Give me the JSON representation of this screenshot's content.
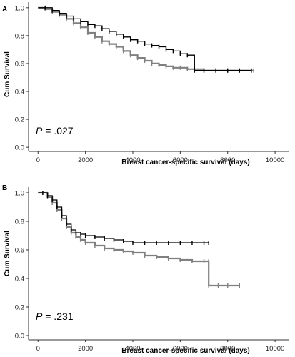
{
  "chart_data": [
    {
      "type": "line",
      "panel": "A",
      "ylabel": "Cum Survival",
      "xlabel": "Breast cancer-specific survival (days)",
      "annotation_p": "P",
      "annotation_value": " = .027",
      "xlim": [
        -400,
        10600
      ],
      "ylim": [
        -0.03,
        1.04
      ],
      "xticks": [
        "0",
        "2000",
        "4000",
        "6000",
        "8000",
        "10000"
      ],
      "yticks": [
        "0.0",
        "0.2",
        "0.4",
        "0.6",
        "0.8",
        "1.0"
      ],
      "grid": false,
      "series": [
        {
          "color": "#808080",
          "x": [
            0,
            300,
            600,
            900,
            1200,
            1500,
            1800,
            2100,
            2400,
            2700,
            3000,
            3300,
            3600,
            3900,
            4200,
            4500,
            4800,
            5100,
            5400,
            5700,
            6000,
            6300,
            6600,
            7000,
            7500,
            8000,
            8500,
            9100
          ],
          "y": [
            1.0,
            0.99,
            0.97,
            0.95,
            0.92,
            0.89,
            0.86,
            0.82,
            0.79,
            0.76,
            0.74,
            0.72,
            0.69,
            0.66,
            0.64,
            0.62,
            0.6,
            0.59,
            0.58,
            0.57,
            0.57,
            0.56,
            0.56,
            0.55,
            0.55,
            0.55,
            0.55,
            0.55
          ]
        },
        {
          "color": "#000000",
          "x": [
            0,
            300,
            600,
            900,
            1200,
            1500,
            1800,
            2100,
            2400,
            2700,
            3000,
            3300,
            3600,
            3900,
            4200,
            4500,
            4800,
            5100,
            5400,
            5700,
            6000,
            6300,
            6600,
            7000,
            7500,
            8000,
            8500,
            9000
          ],
          "y": [
            1.0,
            1.0,
            0.98,
            0.96,
            0.94,
            0.92,
            0.9,
            0.88,
            0.87,
            0.85,
            0.83,
            0.81,
            0.79,
            0.77,
            0.76,
            0.74,
            0.73,
            0.72,
            0.7,
            0.69,
            0.67,
            0.66,
            0.55,
            0.55,
            0.55,
            0.55,
            0.55,
            0.55
          ]
        }
      ]
    },
    {
      "type": "line",
      "panel": "B",
      "ylabel": "Cum Survival",
      "xlabel": "Breast cancer-specific survival (days)",
      "annotation_p": "P",
      "annotation_value": " = .231",
      "xlim": [
        -400,
        10600
      ],
      "ylim": [
        -0.03,
        1.04
      ],
      "xticks": [
        "0",
        "2000",
        "4000",
        "6000",
        "8000",
        "10000"
      ],
      "yticks": [
        "0.0",
        "0.2",
        "0.4",
        "0.6",
        "0.8",
        "1.0"
      ],
      "grid": false,
      "series": [
        {
          "color": "#808080",
          "x": [
            0,
            200,
            400,
            600,
            800,
            1000,
            1200,
            1400,
            1600,
            1800,
            2000,
            2400,
            2800,
            3200,
            3600,
            4000,
            4500,
            5000,
            5500,
            6000,
            6500,
            7000,
            7200,
            7200,
            7600,
            8000,
            8500
          ],
          "y": [
            1.0,
            1.0,
            0.97,
            0.93,
            0.88,
            0.82,
            0.76,
            0.72,
            0.69,
            0.67,
            0.65,
            0.63,
            0.61,
            0.6,
            0.59,
            0.58,
            0.56,
            0.55,
            0.54,
            0.53,
            0.52,
            0.52,
            0.52,
            0.35,
            0.35,
            0.35,
            0.35
          ]
        },
        {
          "color": "#000000",
          "x": [
            0,
            200,
            400,
            600,
            800,
            1000,
            1200,
            1400,
            1600,
            1800,
            2000,
            2400,
            2800,
            3200,
            3600,
            4000,
            4500,
            5000,
            5500,
            6000,
            6500,
            7000,
            7200
          ],
          "y": [
            1.0,
            1.0,
            0.98,
            0.95,
            0.9,
            0.84,
            0.78,
            0.74,
            0.72,
            0.71,
            0.7,
            0.69,
            0.68,
            0.67,
            0.66,
            0.65,
            0.65,
            0.65,
            0.65,
            0.65,
            0.65,
            0.65,
            0.65
          ]
        }
      ]
    }
  ]
}
